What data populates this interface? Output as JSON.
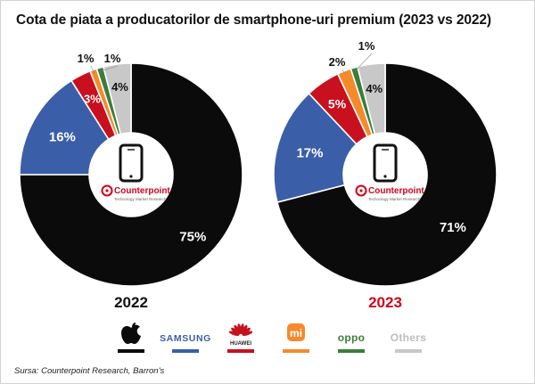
{
  "title": "Cota de piata a producatorilor de smartphone-uri premium (2023 vs 2022)",
  "source": "Sursa: Counterpoint Research, Barron’s",
  "center_logo": {
    "brand": "Counterpoint",
    "tagline": "Technology Market Research",
    "icon": "smartphone-icon"
  },
  "chart_data": [
    {
      "type": "pie",
      "donut": true,
      "label": "2022",
      "label_color": "#111111",
      "categories": [
        "Apple",
        "Samsung",
        "Huawei",
        "Xiaomi",
        "Oppo",
        "Others"
      ],
      "values": [
        75,
        16,
        3,
        1,
        1,
        4
      ],
      "value_labels": [
        "75%",
        "16%",
        "3%",
        "1%",
        "1%",
        "4%"
      ]
    },
    {
      "type": "pie",
      "donut": true,
      "label": "2023",
      "label_color": "#d0021b",
      "categories": [
        "Apple",
        "Samsung",
        "Huawei",
        "Xiaomi",
        "Oppo",
        "Others"
      ],
      "values": [
        71,
        17,
        5,
        2,
        1,
        4
      ],
      "value_labels": [
        "71%",
        "17%",
        "5%",
        "2%",
        "1%",
        "4%"
      ]
    }
  ],
  "colors": {
    "Apple": "#0b0b0b",
    "Samsung": "#3b5ea8",
    "Huawei": "#c8101e",
    "Xiaomi": "#f58a2a",
    "Oppo": "#3b7d3c",
    "Others": "#c8c8c8",
    "counterpoint_red": "#d0021b"
  },
  "legend": [
    {
      "series": "Apple",
      "text": "",
      "icon": "apple-logo-icon",
      "color": "#0b0b0b"
    },
    {
      "series": "Samsung",
      "text": "SAMSUNG",
      "icon": "samsung-logo",
      "color": "#3b5ea8"
    },
    {
      "series": "Huawei",
      "text": "HUAWEI",
      "icon": "huawei-logo-icon",
      "color": "#c8101e"
    },
    {
      "series": "Xiaomi",
      "text": "mi",
      "icon": "xiaomi-logo-icon",
      "color": "#f58a2a"
    },
    {
      "series": "Oppo",
      "text": "oppo",
      "icon": "oppo-logo",
      "color": "#3b7d3c"
    },
    {
      "series": "Others",
      "text": "Others",
      "icon": "others-label",
      "color": "#c8c8c8"
    }
  ]
}
